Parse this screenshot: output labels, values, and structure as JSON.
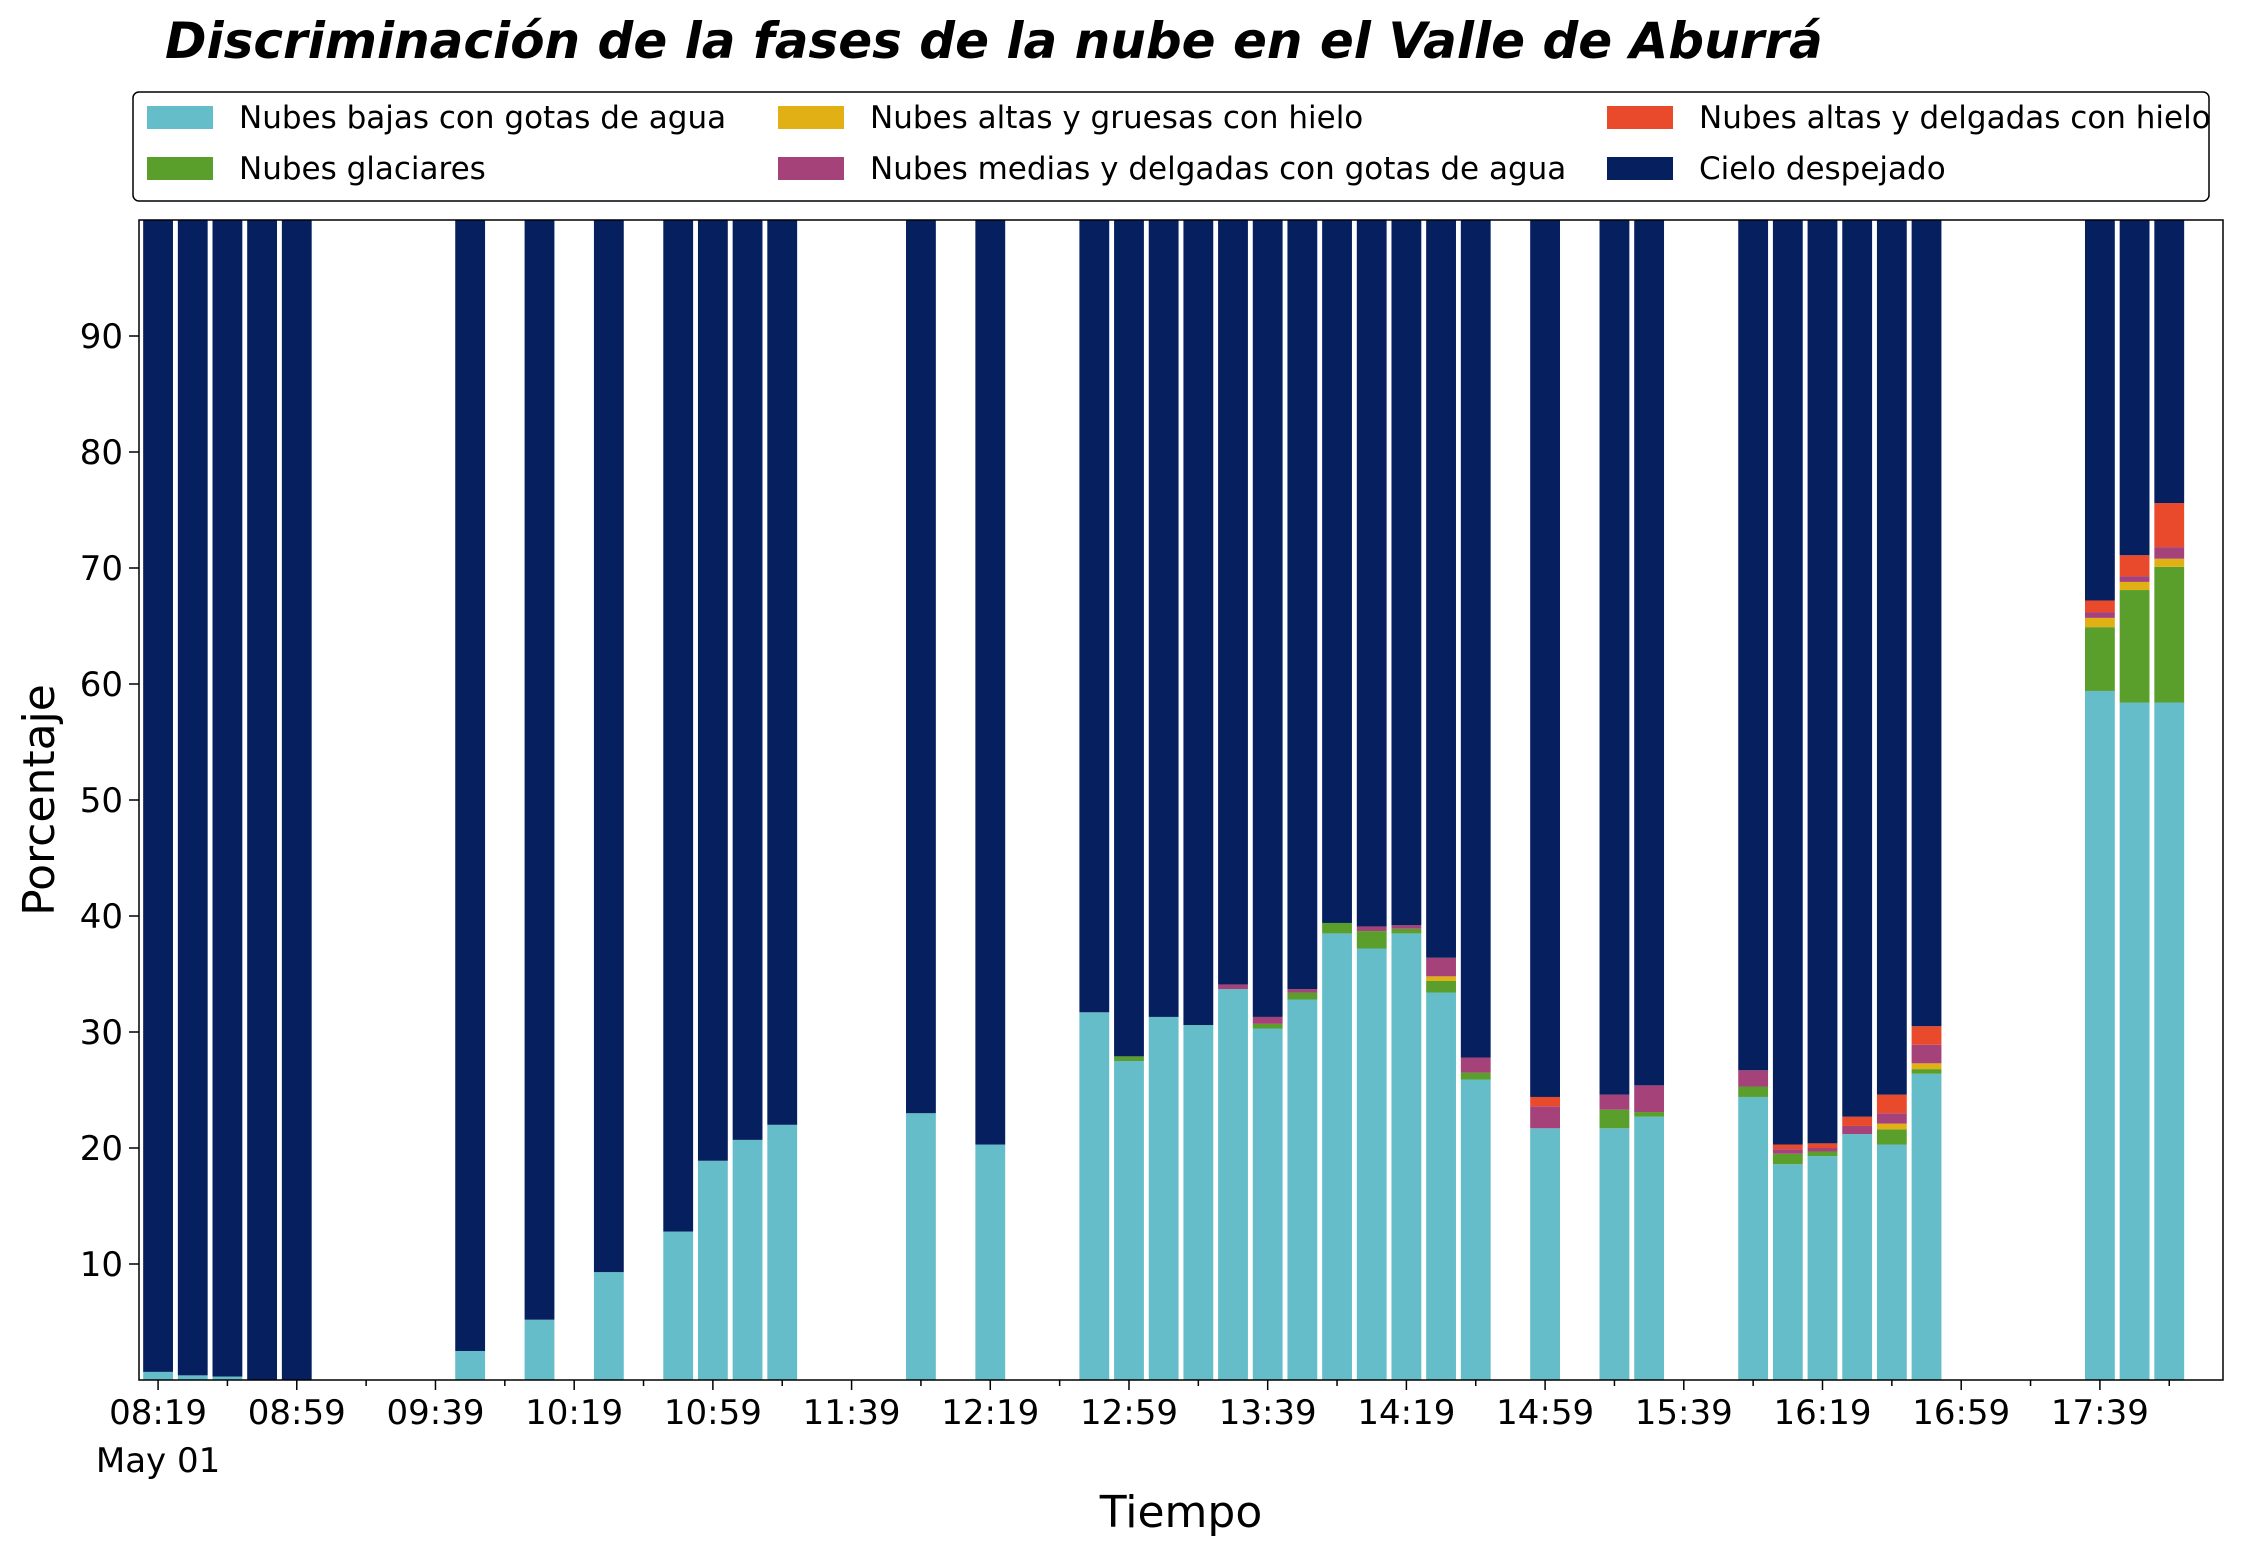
{
  "chart_data": {
    "type": "bar",
    "stacked": true,
    "title": "Discriminación de la fases de la nube en el Valle de Aburrá",
    "xlabel": "Tiempo",
    "ylabel": "Porcentaje",
    "ylim": [
      0,
      100
    ],
    "yticks": [
      10,
      20,
      30,
      40,
      50,
      60,
      70,
      80,
      90
    ],
    "x_start_minutes": 499,
    "slot_minutes": 10,
    "bar_width_minutes": 8.6,
    "xlim_slots": [
      -0.55,
      59.55
    ],
    "xtick_major": [
      {
        "slot": 0,
        "label": "08:19",
        "sub": "May 01"
      },
      {
        "slot": 4,
        "label": "08:59",
        "sub": ""
      },
      {
        "slot": 8,
        "label": "09:39",
        "sub": ""
      },
      {
        "slot": 12,
        "label": "10:19",
        "sub": ""
      },
      {
        "slot": 16,
        "label": "10:59",
        "sub": ""
      },
      {
        "slot": 20,
        "label": "11:39",
        "sub": ""
      },
      {
        "slot": 24,
        "label": "12:19",
        "sub": ""
      },
      {
        "slot": 28,
        "label": "12:59",
        "sub": ""
      },
      {
        "slot": 32,
        "label": "13:39",
        "sub": ""
      },
      {
        "slot": 36,
        "label": "14:19",
        "sub": ""
      },
      {
        "slot": 40,
        "label": "14:59",
        "sub": ""
      },
      {
        "slot": 44,
        "label": "15:39",
        "sub": ""
      },
      {
        "slot": 48,
        "label": "16:19",
        "sub": ""
      },
      {
        "slot": 52,
        "label": "16:59",
        "sub": ""
      },
      {
        "slot": 56,
        "label": "17:39",
        "sub": ""
      }
    ],
    "xtick_minor_every_slots": 2,
    "legend": {
      "placement": "top",
      "columns": 3
    },
    "series": [
      {
        "name": "Nubes bajas con gotas de agua",
        "color": "#65bdc9"
      },
      {
        "name": "Nubes glaciares",
        "color": "#5a9e2c"
      },
      {
        "name": "Nubes altas y gruesas con hielo",
        "color": "#e0b014"
      },
      {
        "name": "Nubes medias y delgadas con gotas de agua",
        "color": "#a6427a"
      },
      {
        "name": "Nubes altas y delgadas con hielo",
        "color": "#ea4a2c"
      },
      {
        "name": "Cielo despejado",
        "color": "#061f5e"
      }
    ],
    "bars": [
      {
        "slot": 0,
        "time": "08:19",
        "values": [
          0.7,
          0,
          0,
          0,
          0,
          99.3
        ]
      },
      {
        "slot": 1,
        "time": "08:29",
        "values": [
          0.4,
          0,
          0,
          0,
          0,
          99.6
        ]
      },
      {
        "slot": 2,
        "time": "08:39",
        "values": [
          0.3,
          0,
          0,
          0,
          0,
          99.7
        ]
      },
      {
        "slot": 3,
        "time": "08:49",
        "values": [
          0,
          0,
          0,
          0,
          0,
          100
        ]
      },
      {
        "slot": 4,
        "time": "08:59",
        "values": [
          0,
          0,
          0,
          0,
          0,
          100
        ]
      },
      {
        "slot": 9,
        "time": "09:49",
        "values": [
          2.5,
          0,
          0,
          0,
          0,
          97.5
        ]
      },
      {
        "slot": 11,
        "time": "10:09",
        "values": [
          5.2,
          0,
          0,
          0,
          0,
          94.8
        ]
      },
      {
        "slot": 13,
        "time": "10:29",
        "values": [
          9.3,
          0,
          0,
          0,
          0,
          90.7
        ]
      },
      {
        "slot": 15,
        "time": "10:49",
        "values": [
          12.8,
          0,
          0,
          0,
          0,
          87.2
        ]
      },
      {
        "slot": 16,
        "time": "10:59",
        "values": [
          18.9,
          0,
          0,
          0,
          0,
          81.1
        ]
      },
      {
        "slot": 17,
        "time": "11:09",
        "values": [
          20.7,
          0,
          0,
          0,
          0,
          79.3
        ]
      },
      {
        "slot": 18,
        "time": "11:19",
        "values": [
          22.0,
          0,
          0,
          0,
          0,
          78.0
        ]
      },
      {
        "slot": 22,
        "time": "11:59",
        "values": [
          23.0,
          0,
          0,
          0,
          0,
          77.0
        ]
      },
      {
        "slot": 24,
        "time": "12:19",
        "values": [
          20.3,
          0,
          0,
          0,
          0,
          79.7
        ]
      },
      {
        "slot": 27,
        "time": "12:49",
        "values": [
          31.7,
          0,
          0,
          0,
          0,
          68.3
        ]
      },
      {
        "slot": 28,
        "time": "12:59",
        "values": [
          27.5,
          0.4,
          0,
          0,
          0,
          72.1
        ]
      },
      {
        "slot": 29,
        "time": "13:09",
        "values": [
          31.3,
          0,
          0,
          0,
          0,
          68.7
        ]
      },
      {
        "slot": 30,
        "time": "13:19",
        "values": [
          30.6,
          0,
          0,
          0,
          0,
          69.4
        ]
      },
      {
        "slot": 31,
        "time": "13:29",
        "values": [
          33.7,
          0,
          0,
          0.4,
          0,
          65.9
        ]
      },
      {
        "slot": 32,
        "time": "13:39",
        "values": [
          30.3,
          0.4,
          0,
          0.6,
          0,
          68.7
        ]
      },
      {
        "slot": 33,
        "time": "13:49",
        "values": [
          32.8,
          0.6,
          0,
          0.3,
          0,
          66.3
        ]
      },
      {
        "slot": 34,
        "time": "13:59",
        "values": [
          38.5,
          0.9,
          0,
          0,
          0,
          60.6
        ]
      },
      {
        "slot": 35,
        "time": "14:09",
        "values": [
          37.2,
          1.5,
          0,
          0.4,
          0,
          60.9
        ]
      },
      {
        "slot": 36,
        "time": "14:19",
        "values": [
          38.5,
          0.4,
          0,
          0.3,
          0,
          60.8
        ]
      },
      {
        "slot": 37,
        "time": "14:29",
        "values": [
          33.4,
          1.0,
          0.4,
          1.6,
          0,
          63.6
        ]
      },
      {
        "slot": 38,
        "time": "14:39",
        "values": [
          25.9,
          0.6,
          0,
          1.3,
          0,
          72.2
        ]
      },
      {
        "slot": 40,
        "time": "14:59",
        "values": [
          21.7,
          0,
          0,
          1.9,
          0.8,
          75.6
        ]
      },
      {
        "slot": 42,
        "time": "15:19",
        "values": [
          21.7,
          1.6,
          0,
          1.3,
          0,
          75.4
        ]
      },
      {
        "slot": 43,
        "time": "15:29",
        "values": [
          22.7,
          0.4,
          0,
          2.3,
          0,
          74.6
        ]
      },
      {
        "slot": 46,
        "time": "15:59",
        "values": [
          24.4,
          0.9,
          0,
          1.4,
          0,
          73.3
        ]
      },
      {
        "slot": 47,
        "time": "16:09",
        "values": [
          18.6,
          0.9,
          0,
          0.4,
          0.4,
          79.7
        ]
      },
      {
        "slot": 48,
        "time": "16:19",
        "values": [
          19.3,
          0.4,
          0,
          0.3,
          0.4,
          79.6
        ]
      },
      {
        "slot": 49,
        "time": "16:29",
        "values": [
          21.2,
          0,
          0,
          0.7,
          0.8,
          77.3
        ]
      },
      {
        "slot": 50,
        "time": "16:39",
        "values": [
          20.3,
          1.3,
          0.5,
          0.9,
          1.6,
          75.4
        ]
      },
      {
        "slot": 51,
        "time": "16:49",
        "values": [
          26.4,
          0.4,
          0.5,
          1.6,
          1.6,
          69.5
        ]
      },
      {
        "slot": 56,
        "time": "17:39",
        "values": [
          59.4,
          5.5,
          0.8,
          0.5,
          1.0,
          32.8
        ]
      },
      {
        "slot": 57,
        "time": "17:49",
        "values": [
          58.4,
          9.7,
          0.7,
          0.5,
          1.8,
          28.9
        ]
      },
      {
        "slot": 58,
        "time": "17:59",
        "values": [
          58.4,
          11.7,
          0.7,
          1.0,
          3.8,
          24.4
        ]
      }
    ]
  }
}
